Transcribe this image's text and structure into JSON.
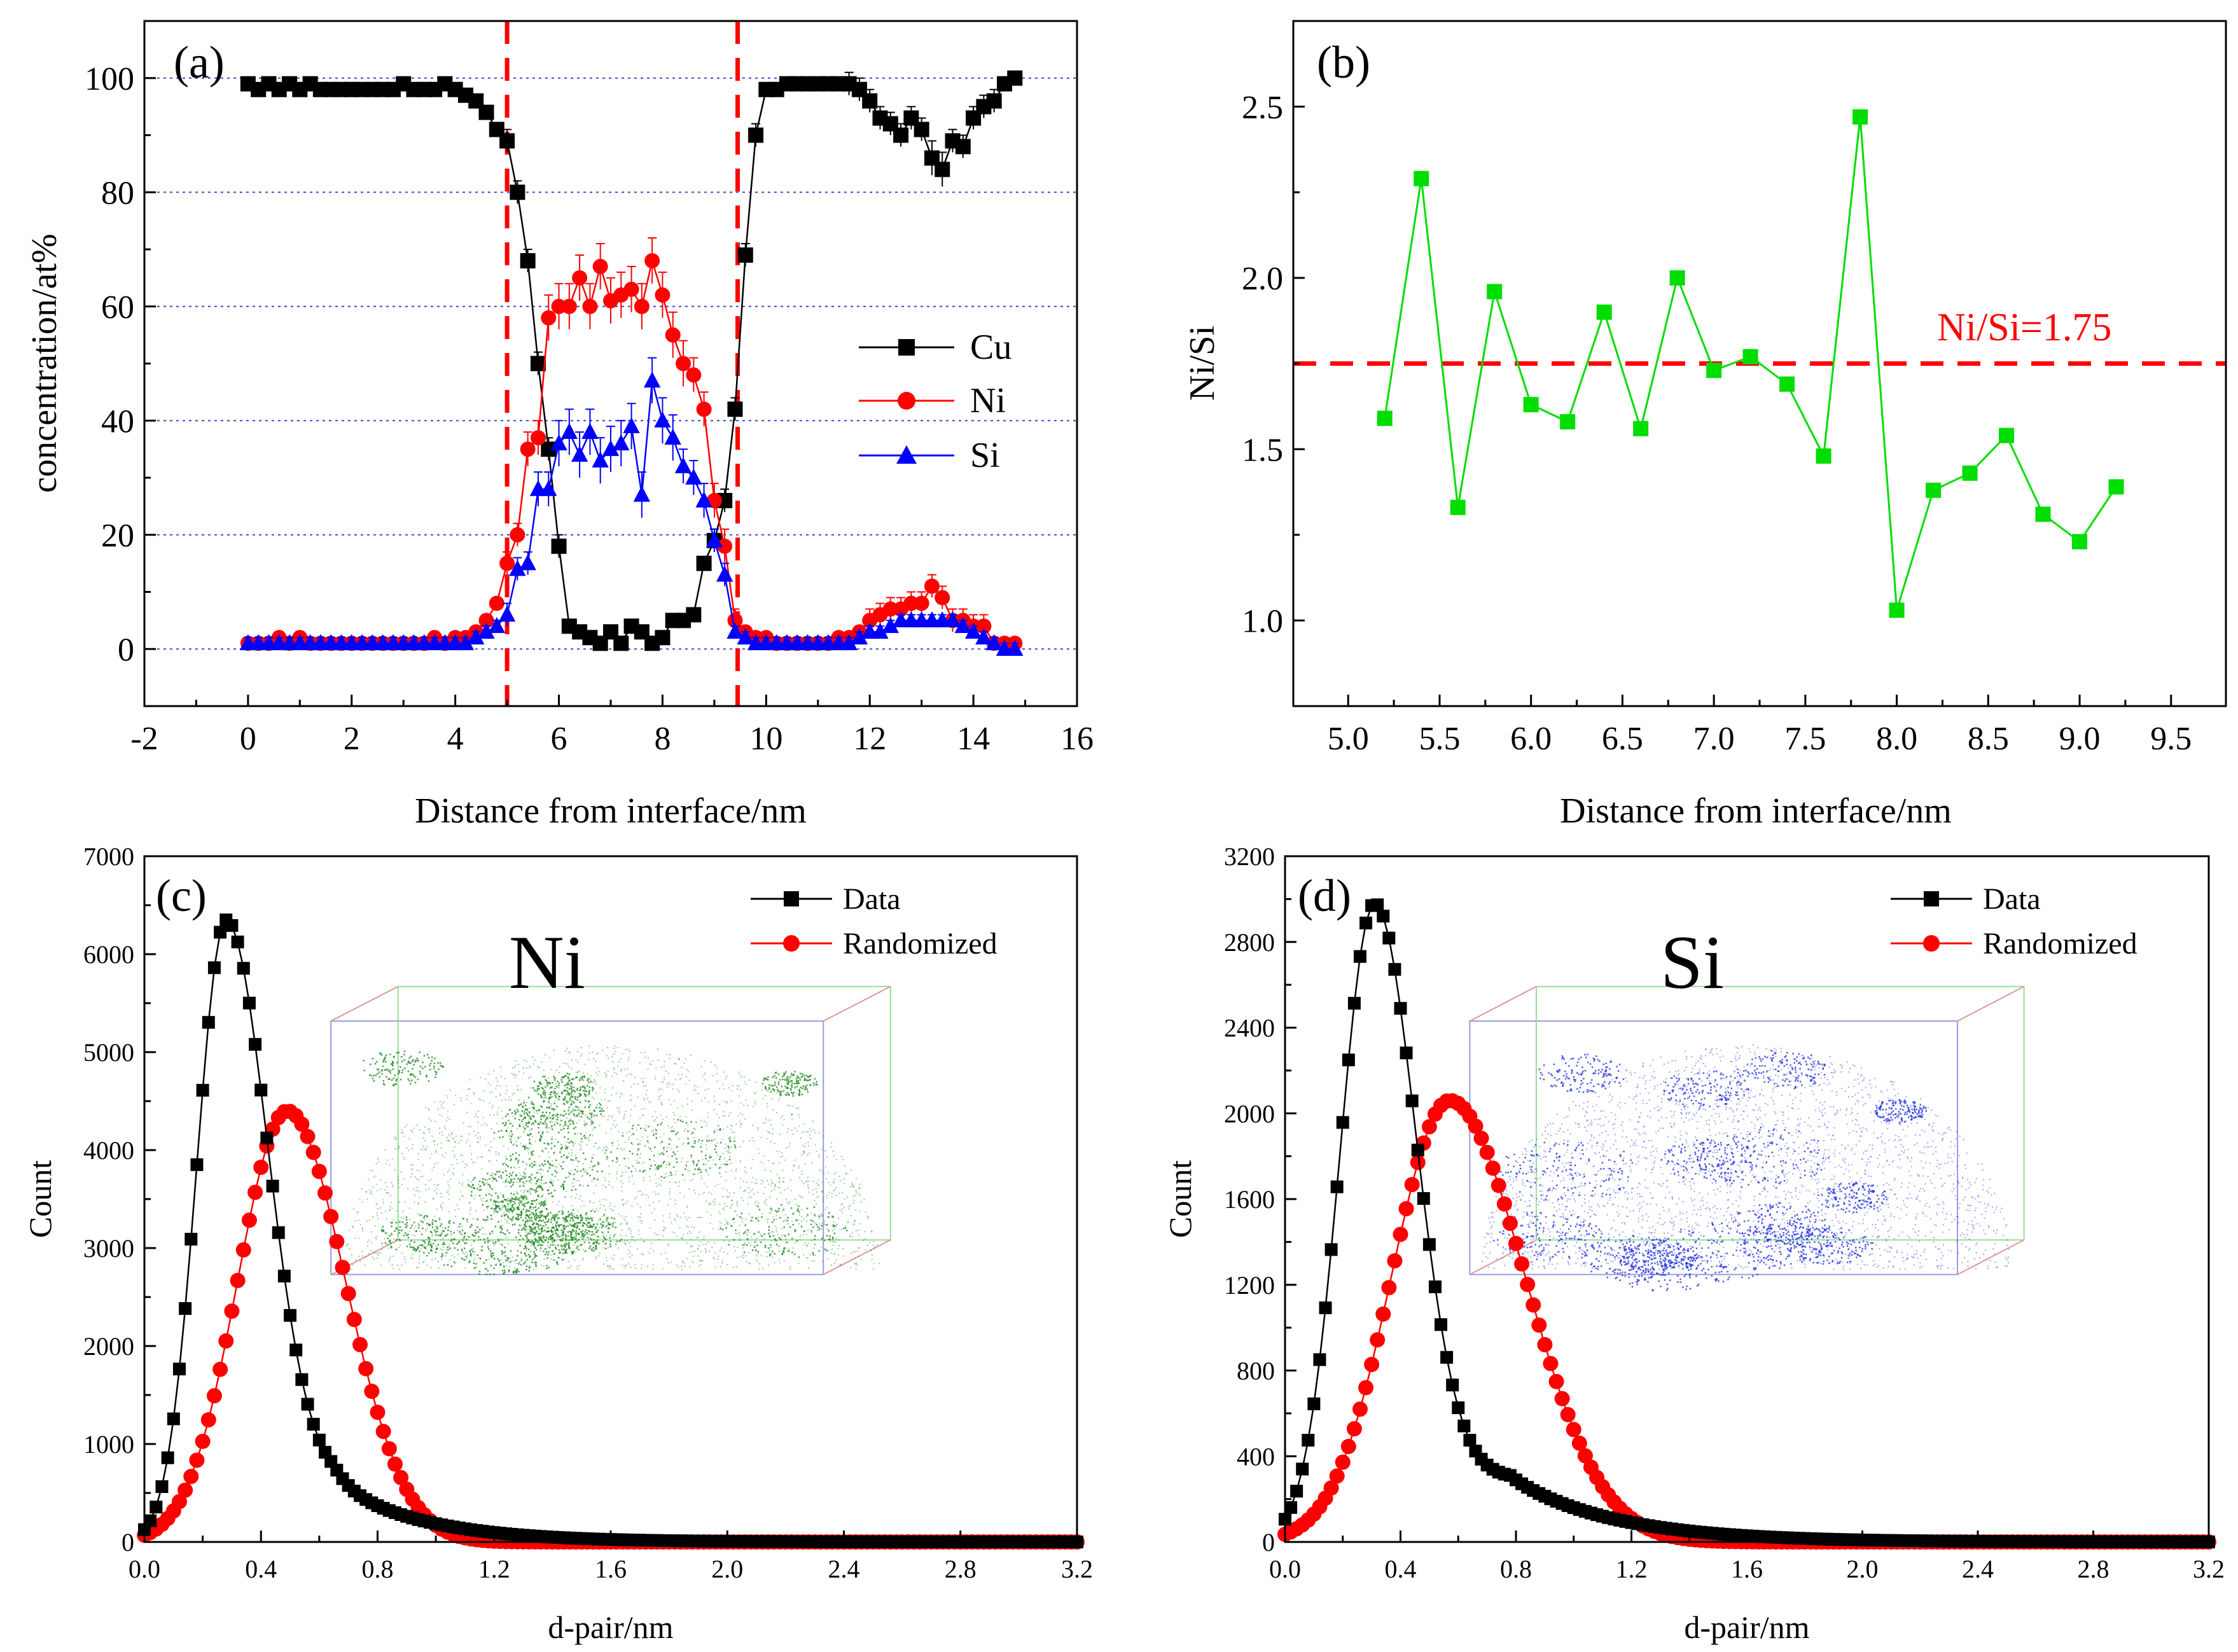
{
  "chart_data": [
    {
      "panel": "(a)",
      "type": "line",
      "title": "",
      "xlabel": "Distance from  interface/nm",
      "ylabel": "concentration/at%",
      "xlim": [
        -2,
        16
      ],
      "ylim": [
        -10,
        110
      ],
      "xticks": [
        -2,
        0,
        2,
        4,
        6,
        8,
        10,
        12,
        14,
        16
      ],
      "yticks": [
        0,
        20,
        40,
        60,
        80,
        100
      ],
      "grid": "horizontal dotted at 0,20,40,60,80,100",
      "legend_position": "center-right",
      "vlines": [
        5.0,
        9.45
      ],
      "series": [
        {
          "name": "Cu",
          "color": "#000000",
          "marker": "square",
          "x": [
            0,
            0.2,
            0.4,
            0.6,
            0.8,
            1.0,
            1.2,
            1.4,
            1.6,
            1.8,
            2.0,
            2.2,
            2.4,
            2.6,
            2.8,
            3.0,
            3.2,
            3.4,
            3.6,
            3.8,
            4.0,
            4.2,
            4.4,
            4.6,
            4.8,
            5.0,
            5.2,
            5.4,
            5.6,
            5.8,
            6.0,
            6.2,
            6.4,
            6.6,
            6.8,
            7.0,
            7.2,
            7.4,
            7.6,
            7.8,
            8.0,
            8.2,
            8.4,
            8.6,
            8.8,
            9.0,
            9.2,
            9.4,
            9.6,
            9.8,
            10.0,
            10.2,
            10.4,
            10.6,
            10.8,
            11.0,
            11.2,
            11.4,
            11.6,
            11.8,
            12.0,
            12.2,
            12.4,
            12.6,
            12.8,
            13.0,
            13.2,
            13.4,
            13.6,
            13.8,
            14.0,
            14.2,
            14.4,
            14.6,
            14.8
          ],
          "y": [
            99,
            98,
            99,
            98,
            99,
            98,
            99,
            98,
            98,
            98,
            98,
            98,
            98,
            98,
            98,
            99,
            98,
            98,
            98,
            99,
            98,
            97,
            96,
            94,
            91,
            89,
            80,
            68,
            50,
            35,
            18,
            4,
            3,
            2,
            1,
            3,
            1,
            4,
            3,
            1,
            2,
            5,
            5,
            6,
            15,
            19,
            26,
            42,
            69,
            90,
            98,
            98,
            99,
            99,
            99,
            99,
            99,
            99,
            99,
            98,
            96,
            93,
            92,
            90,
            93,
            91,
            86,
            84,
            89,
            88,
            93,
            95,
            96,
            99,
            100
          ],
          "err": [
            1,
            1,
            1,
            1,
            1,
            1,
            1,
            1,
            1,
            1,
            1,
            1,
            1,
            1,
            1,
            1,
            1,
            1,
            1,
            1,
            1,
            1,
            1,
            1,
            1,
            2,
            2,
            2,
            2,
            2,
            2,
            1,
            1,
            1,
            1,
            1,
            1,
            1,
            1,
            1,
            1,
            1,
            1,
            1,
            1,
            2,
            2,
            2,
            2,
            2,
            1,
            1,
            1,
            1,
            1,
            1,
            1,
            1,
            2,
            2,
            2,
            2,
            2,
            2,
            2,
            2,
            3,
            3,
            2,
            2,
            2,
            2,
            2,
            1,
            1
          ]
        },
        {
          "name": "Ni",
          "color": "#ff0000",
          "marker": "circle",
          "x": [
            0,
            0.2,
            0.4,
            0.6,
            0.8,
            1.0,
            1.2,
            1.4,
            1.6,
            1.8,
            2.0,
            2.2,
            2.4,
            2.6,
            2.8,
            3.0,
            3.2,
            3.4,
            3.6,
            3.8,
            4.0,
            4.2,
            4.4,
            4.6,
            4.8,
            5.0,
            5.2,
            5.4,
            5.6,
            5.8,
            6.0,
            6.2,
            6.4,
            6.6,
            6.8,
            7.0,
            7.2,
            7.4,
            7.6,
            7.8,
            8.0,
            8.2,
            8.4,
            8.6,
            8.8,
            9.0,
            9.2,
            9.4,
            9.6,
            9.8,
            10.0,
            10.2,
            10.4,
            10.6,
            10.8,
            11.0,
            11.2,
            11.4,
            11.6,
            11.8,
            12.0,
            12.2,
            12.4,
            12.6,
            12.8,
            13.0,
            13.2,
            13.4,
            13.6,
            13.8,
            14.0,
            14.2,
            14.4,
            14.6,
            14.8
          ],
          "y": [
            1,
            1,
            1,
            2,
            1,
            2,
            1,
            1,
            1,
            1,
            1,
            1,
            1,
            1,
            1,
            1,
            1,
            1,
            2,
            1,
            2,
            2,
            3,
            5,
            8,
            15,
            20,
            35,
            37,
            58,
            60,
            60,
            65,
            60,
            67,
            61,
            62,
            63,
            60,
            68,
            62,
            55,
            50,
            48,
            42,
            26,
            18,
            5,
            3,
            2,
            2,
            1,
            1,
            1,
            1,
            1,
            1,
            2,
            2,
            3,
            5,
            6,
            7,
            7,
            8,
            8,
            11,
            9,
            5,
            5,
            4,
            4,
            1,
            1,
            1
          ],
          "err": [
            1,
            1,
            1,
            1,
            1,
            1,
            1,
            1,
            1,
            1,
            1,
            1,
            1,
            1,
            1,
            1,
            1,
            1,
            1,
            1,
            1,
            1,
            1,
            1,
            1,
            2,
            2,
            3,
            3,
            4,
            4,
            4,
            4,
            4,
            4,
            4,
            4,
            4,
            4,
            4,
            4,
            4,
            4,
            3,
            3,
            3,
            3,
            2,
            1,
            1,
            1,
            1,
            1,
            1,
            1,
            1,
            1,
            1,
            1,
            1,
            2,
            2,
            2,
            2,
            2,
            2,
            2,
            2,
            2,
            2,
            2,
            2,
            1,
            1,
            1
          ]
        },
        {
          "name": "Si",
          "color": "#0000ff",
          "marker": "triangle",
          "x": [
            0,
            0.2,
            0.4,
            0.6,
            0.8,
            1.0,
            1.2,
            1.4,
            1.6,
            1.8,
            2.0,
            2.2,
            2.4,
            2.6,
            2.8,
            3.0,
            3.2,
            3.4,
            3.6,
            3.8,
            4.0,
            4.2,
            4.4,
            4.6,
            4.8,
            5.0,
            5.2,
            5.4,
            5.6,
            5.8,
            6.0,
            6.2,
            6.4,
            6.6,
            6.8,
            7.0,
            7.2,
            7.4,
            7.6,
            7.8,
            8.0,
            8.2,
            8.4,
            8.6,
            8.8,
            9.0,
            9.2,
            9.4,
            9.6,
            9.8,
            10.0,
            10.2,
            10.4,
            10.6,
            10.8,
            11.0,
            11.2,
            11.4,
            11.6,
            11.8,
            12.0,
            12.2,
            12.4,
            12.6,
            12.8,
            13.0,
            13.2,
            13.4,
            13.6,
            13.8,
            14.0,
            14.2,
            14.4,
            14.6,
            14.8
          ],
          "y": [
            1,
            1,
            1,
            1,
            1,
            1,
            1,
            1,
            1,
            1,
            1,
            1,
            1,
            1,
            1,
            1,
            1,
            1,
            1,
            1,
            1,
            1,
            2,
            3,
            4,
            6,
            14,
            15,
            28,
            28,
            36,
            38,
            34,
            38,
            33,
            35,
            36,
            39,
            27,
            47,
            40,
            37,
            32,
            30,
            26,
            19,
            13,
            3,
            2,
            1,
            1,
            1,
            1,
            1,
            1,
            1,
            1,
            1,
            1,
            2,
            3,
            3,
            4,
            5,
            5,
            5,
            5,
            5,
            5,
            4,
            3,
            2,
            1,
            0,
            0
          ],
          "err": [
            1,
            1,
            1,
            1,
            1,
            1,
            1,
            1,
            1,
            1,
            1,
            1,
            1,
            1,
            1,
            1,
            1,
            1,
            1,
            1,
            1,
            1,
            1,
            1,
            1,
            2,
            2,
            2,
            3,
            3,
            4,
            4,
            4,
            4,
            4,
            4,
            4,
            4,
            4,
            4,
            4,
            4,
            3,
            3,
            3,
            2,
            2,
            1,
            1,
            1,
            1,
            1,
            1,
            1,
            1,
            1,
            1,
            1,
            1,
            1,
            1,
            1,
            1,
            1,
            1,
            1,
            1,
            1,
            1,
            1,
            1,
            1,
            1,
            1,
            1
          ]
        }
      ],
      "legend": [
        "Cu",
        "Ni",
        "Si"
      ]
    },
    {
      "panel": "(b)",
      "type": "line",
      "xlabel": "Distance from interface/nm",
      "ylabel": "Ni/Si",
      "xlim": [
        4.7,
        9.8
      ],
      "ylim": [
        0.75,
        2.75
      ],
      "xticks": [
        5.0,
        5.5,
        6.0,
        6.5,
        7.0,
        7.5,
        8.0,
        8.5,
        9.0,
        9.5
      ],
      "yticks": [
        1.0,
        1.5,
        2.0,
        2.5
      ],
      "hline": 1.75,
      "hline_label": "Ni/Si=1.75",
      "series": [
        {
          "name": "Ni/Si",
          "color": "#00dd00",
          "marker": "square",
          "x": [
            5.2,
            5.4,
            5.6,
            5.8,
            6.0,
            6.2,
            6.4,
            6.6,
            6.8,
            7.0,
            7.2,
            7.4,
            7.6,
            7.8,
            8.0,
            8.2,
            8.4,
            8.6,
            8.8,
            9.0,
            9.2
          ],
          "y": [
            1.59,
            2.29,
            1.33,
            1.96,
            1.63,
            1.58,
            1.9,
            1.56,
            2.0,
            1.73,
            1.77,
            1.69,
            1.48,
            2.47,
            1.03,
            1.38,
            1.43,
            1.54,
            1.31,
            1.23,
            1.39
          ]
        }
      ]
    },
    {
      "panel": "(c)",
      "type": "line",
      "element_label": "Ni",
      "xlabel": "d-pair/nm",
      "ylabel": "Count",
      "xlim": [
        0,
        3.2
      ],
      "ylim": [
        0,
        7000
      ],
      "xticks": [
        0.0,
        0.4,
        0.8,
        1.2,
        1.6,
        2.0,
        2.4,
        2.8,
        3.2
      ],
      "yticks": [
        0,
        1000,
        2000,
        3000,
        4000,
        5000,
        6000,
        7000
      ],
      "legend": [
        "Data",
        "Randomized"
      ],
      "legend_position": "top-right",
      "inset": "3D atom map, green points",
      "series": [
        {
          "name": "Data",
          "color": "#000000",
          "marker": "square",
          "dist": {
            "peak_x": 0.28,
            "peak_y": 6350,
            "sigma_left": 0.1,
            "sigma_right": 0.14,
            "tail_amp": 600,
            "tail_center": 0.65,
            "tail_decay": 0.3,
            "x_start": 0.0,
            "x_end": 3.2,
            "step": 0.02
          }
        },
        {
          "name": "Randomized",
          "color": "#ff0000",
          "marker": "circle",
          "dist": {
            "peak_x": 0.49,
            "peak_y": 4400,
            "sigma_left": 0.17,
            "sigma_right": 0.2,
            "tail_amp": 0,
            "tail_center": 0.9,
            "tail_decay": 0.2,
            "x_start": 0.0,
            "x_end": 3.2,
            "step": 0.02
          }
        }
      ]
    },
    {
      "panel": "(d)",
      "type": "line",
      "element_label": "Si",
      "xlabel": "d-pair/nm",
      "ylabel": "Count",
      "xlim": [
        0,
        3.2
      ],
      "ylim": [
        0,
        3200
      ],
      "xticks": [
        0.0,
        0.4,
        0.8,
        1.2,
        1.6,
        2.0,
        2.4,
        2.8,
        3.2
      ],
      "yticks": [
        0,
        400,
        800,
        1200,
        1600,
        2000,
        2400,
        2800,
        3200
      ],
      "legend": [
        "Data",
        "Randomized"
      ],
      "legend_position": "top-right",
      "inset": "3D atom map, blue points",
      "series": [
        {
          "name": "Data",
          "color": "#000000",
          "marker": "square",
          "dist": {
            "peak_x": 0.31,
            "peak_y": 2980,
            "sigma_left": 0.12,
            "sigma_right": 0.14,
            "tail_amp": 300,
            "tail_center": 0.78,
            "tail_decay": 0.35,
            "x_start": 0.0,
            "x_end": 3.2,
            "step": 0.02
          }
        },
        {
          "name": "Randomized",
          "color": "#ff0000",
          "marker": "circle",
          "dist": {
            "peak_x": 0.57,
            "peak_y": 2060,
            "sigma_left": 0.2,
            "sigma_right": 0.26,
            "tail_amp": 0,
            "tail_center": 1.0,
            "tail_decay": 0.2,
            "x_start": 0.0,
            "x_end": 3.2,
            "step": 0.02
          }
        }
      ]
    }
  ]
}
